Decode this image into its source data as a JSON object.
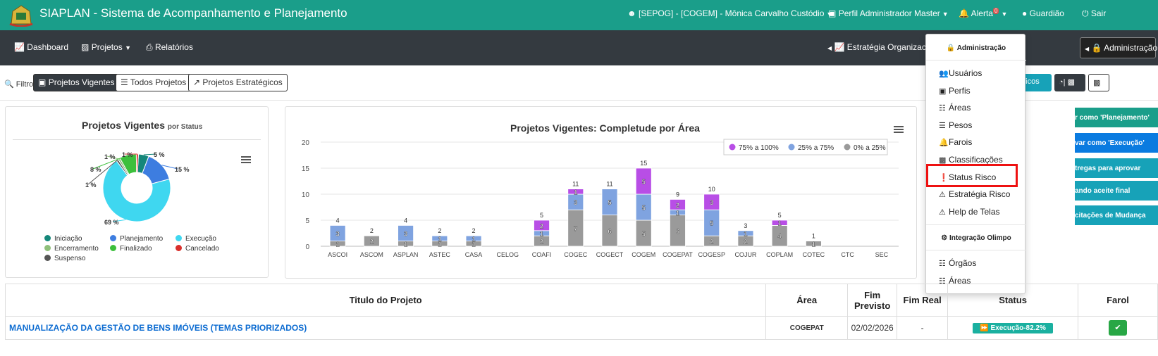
{
  "header": {
    "app_title": "SIAPLAN - Sistema de Acompanhamento e Planejamento",
    "user": "[SEPOG] - [COGEM] - Mônica Carvalho Custódio",
    "profile": "Perfil Administrador Master",
    "alert_label": "Alerta",
    "alert_count": "0",
    "guardiao": "Guardião",
    "sair": "Sair",
    "colors": {
      "bar": "#1a9e8a"
    }
  },
  "navbar": {
    "dashboard": "Dashboard",
    "projetos": "Projetos",
    "relatorios": "Relatórios",
    "estrategia": "Estratégia Organizacion",
    "administracao": "Administração"
  },
  "filters": {
    "label": "Filtros:",
    "vigentes": "Projetos Vigentes",
    "todos": "Todos Projetos",
    "estrategicos": "Projetos Estratégicos",
    "graficos": "áficos",
    "btn2": "| ",
    "btn3": ""
  },
  "pie_card": {
    "title": "Projetos Vigentes",
    "subtitle": "por Status",
    "legend": [
      {
        "label": "Iniciação",
        "color": "#15877a"
      },
      {
        "label": "Planejamento",
        "color": "#3d7de0"
      },
      {
        "label": "Execução",
        "color": "#3fd7f0"
      },
      {
        "label": "Encerramento",
        "color": "#8fbf7a"
      },
      {
        "label": "Finalizado",
        "color": "#3cbf3c"
      },
      {
        "label": "Cancelado",
        "color": "#d9302c"
      },
      {
        "label": "Suspenso",
        "color": "#555555"
      }
    ],
    "chart_data": {
      "type": "pie",
      "categories": [
        "Iniciação",
        "Planejamento",
        "Execução",
        "Encerramento",
        "Finalizado",
        "Cancelado",
        "Suspenso"
      ],
      "values": [
        5,
        15,
        69,
        1,
        8,
        1,
        1
      ],
      "labels": [
        "5 %",
        "15 %",
        "69 %",
        "1 %",
        "8 %",
        "1 %",
        "1 %"
      ]
    }
  },
  "bar_card": {
    "title": "Projetos Vigentes: Completude por Área",
    "chart_data": {
      "type": "bar",
      "stacked": true,
      "title": "Projetos Vigentes: Completude por Área",
      "categories": [
        "ASCOI",
        "ASCOM",
        "ASPLAN",
        "ASTEC",
        "CASA",
        "CELOG",
        "COAFI",
        "COGEC",
        "COGECT",
        "COGEM",
        "COGEPAT",
        "COGESP",
        "COJUR",
        "COPLAM",
        "COTEC",
        "CTC",
        "SEC"
      ],
      "series": [
        {
          "name": "0% a 25%",
          "color": "#9a9a9a",
          "values": [
            1,
            2,
            1,
            1,
            1,
            0,
            2,
            7,
            6,
            5,
            6,
            2,
            2,
            4,
            1,
            0,
            0
          ]
        },
        {
          "name": "25% a 75%",
          "color": "#7fa3e0",
          "values": [
            3,
            0,
            3,
            1,
            1,
            0,
            1,
            3,
            5,
            5,
            1,
            5,
            1,
            0,
            0,
            0,
            0
          ]
        },
        {
          "name": "75% a 100%",
          "color": "#b84ee6",
          "values": [
            0,
            0,
            0,
            0,
            0,
            0,
            2,
            1,
            0,
            5,
            2,
            3,
            0,
            1,
            0,
            0,
            0
          ]
        }
      ],
      "totals": [
        4,
        2,
        4,
        2,
        2,
        0,
        5,
        11,
        11,
        15,
        9,
        10,
        3,
        5,
        1,
        0,
        0
      ],
      "yticks": [
        0,
        5,
        10,
        15,
        20
      ],
      "ylim": [
        0,
        20
      ],
      "legend_position": "top-right"
    }
  },
  "right_buttons": [
    {
      "label": "r como 'Planejamento'",
      "color": "#1a9e8a"
    },
    {
      "label": "var como 'Execução'",
      "color": "#0a7be0"
    },
    {
      "label": "tregas para aprovar",
      "color": "#17a2b8"
    },
    {
      "label": "ando aceite final",
      "color": "#17a2b8"
    },
    {
      "label": "citações de Mudança",
      "color": "#17a2b8"
    }
  ],
  "dropdown": {
    "header_admin": "Administração",
    "items_admin": [
      {
        "label": "Usuários",
        "icon": "users-icon"
      },
      {
        "label": "Perfis",
        "icon": "id-card-icon"
      },
      {
        "label": "Áreas",
        "icon": "sitemap-icon"
      },
      {
        "label": "Pesos",
        "icon": "list-icon"
      },
      {
        "label": "Farois",
        "icon": "bell-icon"
      },
      {
        "label": "Classificações",
        "icon": "chart-icon"
      },
      {
        "label": "Status Risco",
        "icon": "exclamation-circle-icon"
      },
      {
        "label": "Estratégia Risco",
        "icon": "warning-icon"
      },
      {
        "label": "Help de Telas",
        "icon": "warning-icon"
      }
    ],
    "header_integracao": "Integração Olimpo",
    "items_integracao": [
      {
        "label": "Órgãos",
        "icon": "sitemap-icon"
      },
      {
        "label": "Áreas",
        "icon": "sitemap-icon"
      }
    ]
  },
  "table": {
    "headers": [
      "Titulo do Projeto",
      "Área",
      "Fim Previsto",
      "Fim Real",
      "Status",
      "Farol"
    ],
    "rows": [
      {
        "titulo": "MANUALIZAÇÃO DA GESTÃO DE BENS IMÓVEIS (TEMAS PRIORIZADOS)",
        "area": "COGEPAT",
        "fim_previsto": "02/02/2026",
        "fim_real": "-",
        "status": "Execução-82.2%"
      }
    ]
  }
}
